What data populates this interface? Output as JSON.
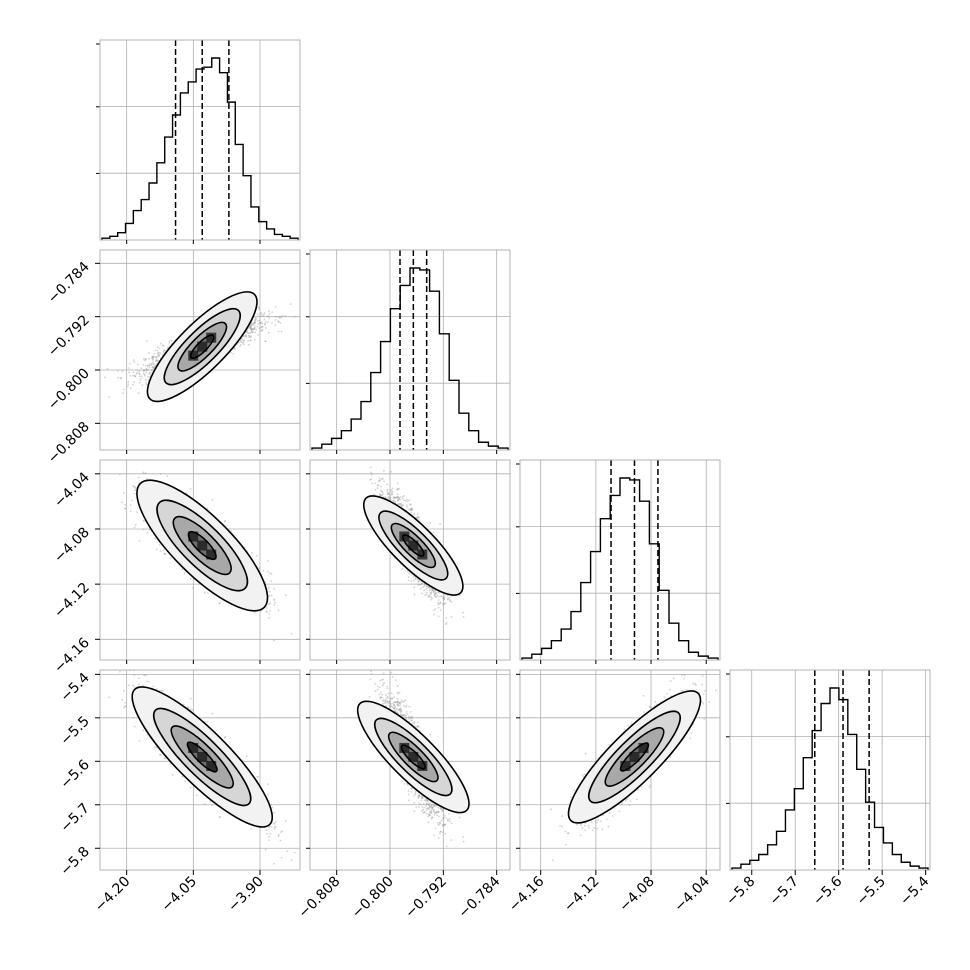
{
  "colors": {
    "frame": "#b3b3b3",
    "grid": "#b0b0b0",
    "line": "#000000",
    "points": "#9e9e9e"
  },
  "chart_data": {
    "type": "corner",
    "parameters": [
      {
        "ticks": [
          -4.2,
          -4.05,
          -3.9
        ],
        "tick_labels": [
          "−4.20",
          "−4.05",
          "−3.90"
        ],
        "range": [
          -4.26,
          -3.81
        ],
        "quantiles": [
          -4.09,
          -4.03,
          -3.97
        ],
        "histogram": [
          1,
          2,
          4,
          9,
          16,
          22,
          31,
          42,
          56,
          68,
          80,
          86,
          93,
          94,
          99,
          91,
          75,
          52,
          35,
          18,
          10,
          6,
          3,
          2,
          1
        ]
      },
      {
        "ticks": [
          -0.808,
          -0.8,
          -0.792,
          -0.784
        ],
        "tick_labels": [
          "−0.808",
          "−0.800",
          "−0.792",
          "−0.784"
        ],
        "range": [
          -0.812,
          -0.782
        ],
        "quantiles": [
          -0.7985,
          -0.7965,
          -0.7945
        ],
        "histogram": [
          1,
          3,
          6,
          10,
          16,
          25,
          40,
          56,
          73,
          85,
          94,
          93,
          82,
          60,
          36,
          19,
          10,
          4,
          2,
          1
        ]
      },
      {
        "ticks": [
          -4.16,
          -4.12,
          -4.08,
          -4.04
        ],
        "tick_labels": [
          "−4.16",
          "−4.12",
          "−4.08",
          "−4.04"
        ],
        "range": [
          -4.175,
          -4.03
        ],
        "quantiles": [
          -4.109,
          -4.092,
          -4.075
        ],
        "histogram": [
          1,
          3,
          6,
          10,
          16,
          25,
          40,
          56,
          73,
          85,
          94,
          93,
          82,
          60,
          36,
          19,
          10,
          4,
          2,
          1
        ]
      },
      {
        "ticks": [
          -5.8,
          -5.7,
          -5.6,
          -5.5,
          -5.4
        ],
        "tick_labels": [
          "−5.8",
          "−5.7",
          "−5.6",
          "−5.5",
          "−5.4"
        ],
        "range": [
          -5.85,
          -5.39
        ],
        "quantiles": [
          -5.655,
          -5.59,
          -5.53
        ],
        "histogram": [
          1,
          3,
          5,
          8,
          13,
          20,
          31,
          42,
          58,
          72,
          86,
          94,
          88,
          70,
          52,
          35,
          22,
          14,
          8,
          4,
          2,
          1
        ]
      }
    ],
    "correlations": [
      [
        1,
        0.82,
        -0.8,
        -0.86
      ],
      [
        0.82,
        1,
        -0.82,
        -0.84
      ],
      [
        -0.8,
        -0.82,
        1,
        0.86
      ],
      [
        -0.86,
        -0.84,
        0.86,
        1
      ]
    ],
    "grid": true,
    "xlabels": [
      "",
      "",
      "",
      ""
    ],
    "ylabels": [
      "",
      "",
      "",
      ""
    ]
  }
}
